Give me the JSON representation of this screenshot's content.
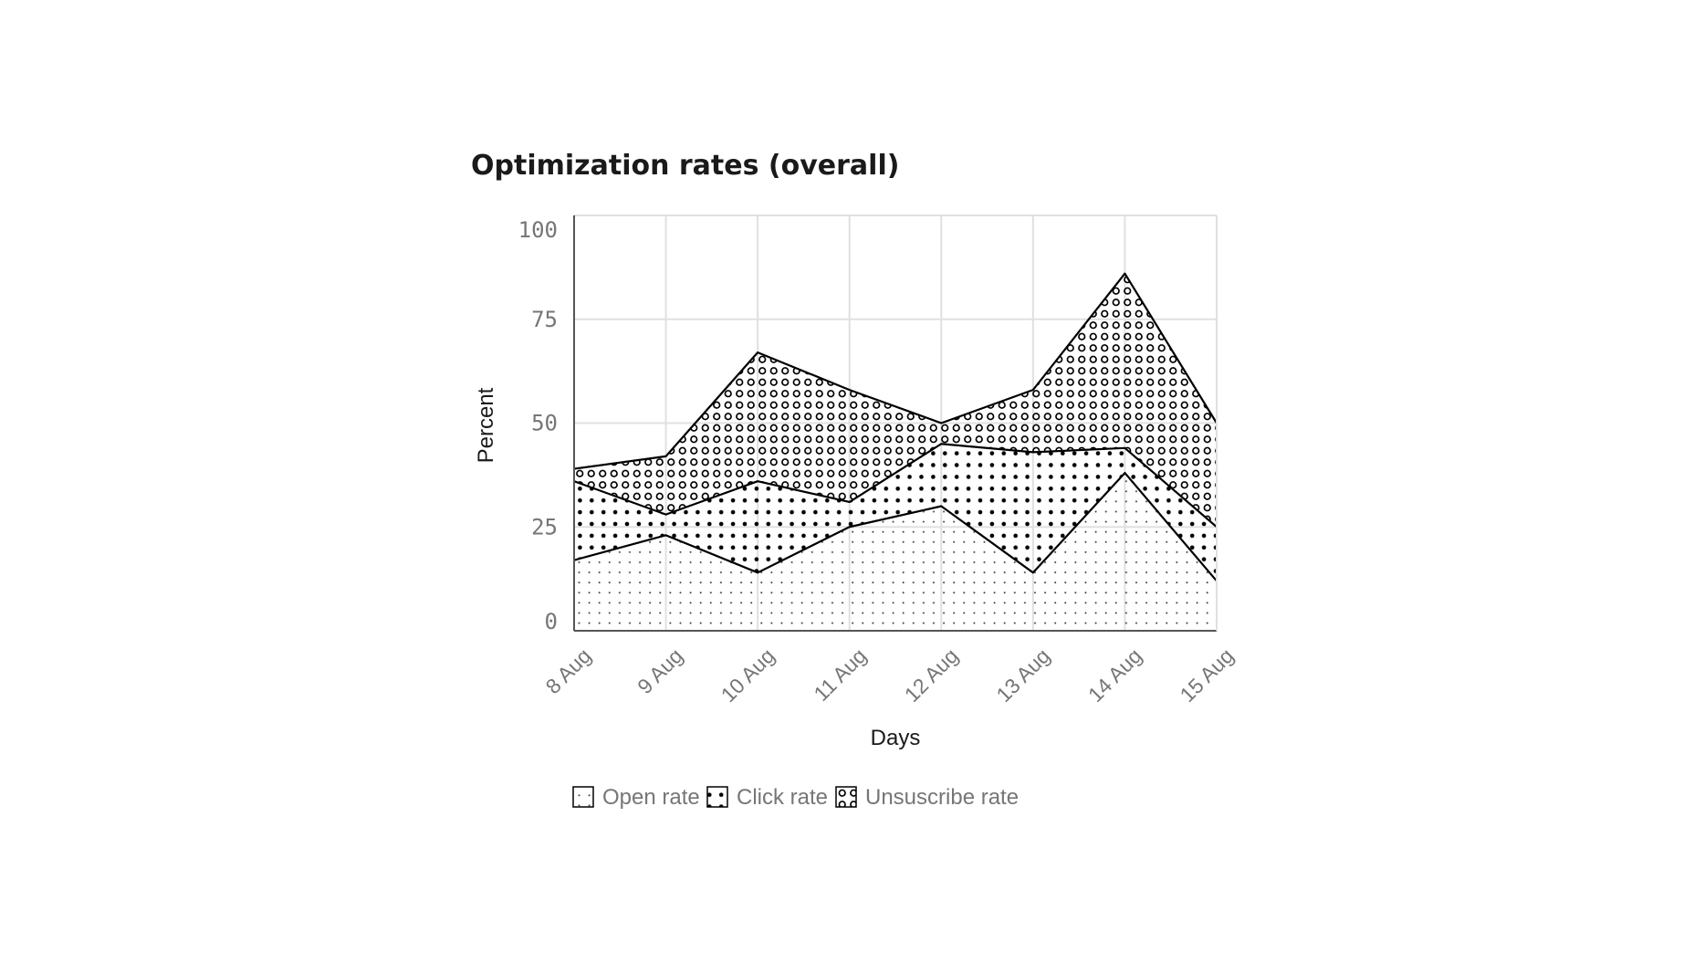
{
  "chart_data": {
    "type": "area",
    "stacked": true,
    "title": "Optimization rates (overall)",
    "xlabel": "Days",
    "ylabel": "Percent",
    "categories": [
      "8 Aug",
      "9 Aug",
      "10 Aug",
      "11 Aug",
      "12 Aug",
      "13 Aug",
      "14 Aug",
      "15 Aug"
    ],
    "ylim": [
      0,
      100
    ],
    "yticks": [
      "0",
      "25",
      "50",
      "75",
      "100"
    ],
    "grid": true,
    "legend_position": "bottom",
    "series": [
      {
        "name": "Open rate",
        "values": [
          17,
          23,
          14,
          25,
          30,
          14,
          38,
          12
        ],
        "pattern": "sparse-dots"
      },
      {
        "name": "Click rate",
        "values": [
          19,
          5,
          22,
          6,
          15,
          29,
          6,
          13
        ],
        "pattern": "dense-dots"
      },
      {
        "name": "Unsuscribe rate",
        "values": [
          3,
          14,
          31,
          27,
          5,
          15,
          42,
          25
        ],
        "pattern": "circles"
      }
    ],
    "line_color": "#000000",
    "grid_color": "#e0e0e0",
    "tick_color": "#767676"
  }
}
